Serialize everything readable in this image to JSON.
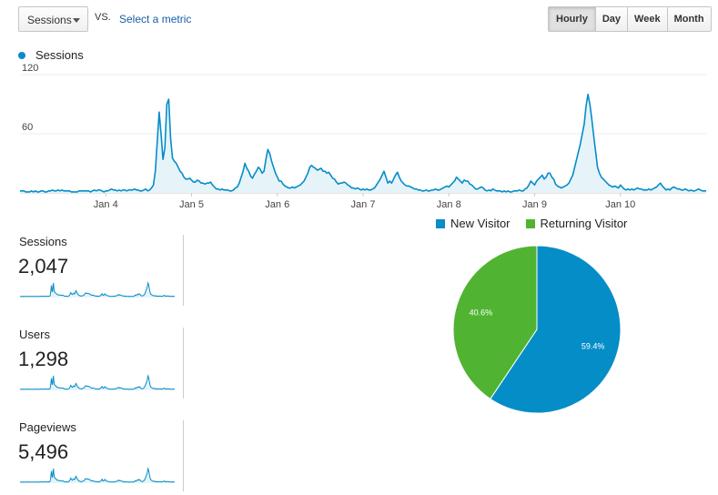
{
  "controls": {
    "metric_select": "Sessions",
    "vs_text": "VS.",
    "select_metric_link": "Select a metric",
    "granularity": [
      {
        "label": "Hourly",
        "active": true
      },
      {
        "label": "Day",
        "active": false
      },
      {
        "label": "Week",
        "active": false
      },
      {
        "label": "Month",
        "active": false
      }
    ]
  },
  "colors": {
    "sessions": "#058dc7",
    "new_visitor": "#058dc7",
    "returning_visitor": "#50b432",
    "area_fill": "#e6f4fa"
  },
  "chart_data": [
    {
      "type": "area",
      "series": [
        {
          "name": "Sessions"
        }
      ],
      "y_ticks": [
        "120",
        "60"
      ],
      "ylim": [
        0,
        120
      ],
      "x_ticks": [
        "Jan 4",
        "Jan 5",
        "Jan 6",
        "Jan 7",
        "Jan 8",
        "Jan 9",
        "Jan 10"
      ],
      "x_tick_dates": [
        "2020-01-04",
        "2020-01-05",
        "2020-01-06",
        "2020-01-07",
        "2020-01-08",
        "2020-01-09",
        "2020-01-10"
      ],
      "x_range": [
        "2020-01-03",
        "2020-01-11"
      ],
      "values": [
        2,
        2,
        2,
        1,
        1,
        1,
        2,
        1,
        2,
        1,
        1,
        2,
        2,
        1,
        1,
        2,
        2,
        3,
        2,
        2,
        3,
        2,
        3,
        2,
        2,
        2,
        2,
        1,
        1,
        1,
        1,
        2,
        2,
        2,
        2,
        2,
        2,
        1,
        2,
        3,
        2,
        3,
        3,
        2,
        1,
        2,
        2,
        3,
        4,
        3,
        3,
        2,
        3,
        2,
        3,
        3,
        2,
        3,
        3,
        3,
        4,
        3,
        3,
        2,
        2,
        3,
        4,
        2,
        3,
        5,
        8,
        22,
        52,
        82,
        60,
        34,
        46,
        90,
        95,
        55,
        35,
        32,
        30,
        26,
        22,
        20,
        16,
        14,
        14,
        15,
        13,
        11,
        11,
        13,
        12,
        10,
        10,
        9,
        10,
        10,
        11,
        8,
        6,
        4,
        4,
        3,
        4,
        3,
        3,
        3,
        2,
        2,
        3,
        5,
        6,
        10,
        16,
        22,
        30,
        25,
        22,
        17,
        15,
        19,
        22,
        26,
        24,
        20,
        22,
        34,
        44,
        40,
        32,
        26,
        20,
        16,
        12,
        12,
        9,
        7,
        6,
        5,
        5,
        6,
        5,
        6,
        7,
        8,
        10,
        12,
        16,
        20,
        26,
        28,
        26,
        25,
        23,
        24,
        25,
        22,
        22,
        20,
        21,
        18,
        15,
        14,
        11,
        9,
        10,
        10,
        11,
        10,
        8,
        7,
        5,
        5,
        4,
        5,
        4,
        3,
        4,
        3,
        4,
        3,
        3,
        4,
        5,
        8,
        11,
        14,
        18,
        22,
        16,
        10,
        12,
        10,
        14,
        18,
        21,
        16,
        12,
        10,
        8,
        7,
        7,
        6,
        5,
        4,
        4,
        3,
        3,
        2,
        2,
        3,
        2,
        2,
        3,
        3,
        4,
        3,
        3,
        4,
        5,
        6,
        7,
        6,
        8,
        10,
        12,
        16,
        14,
        12,
        10,
        13,
        12,
        12,
        9,
        8,
        6,
        4,
        4,
        5,
        6,
        5,
        3,
        2,
        3,
        2,
        4,
        3,
        2,
        2,
        2,
        1,
        2,
        1,
        2,
        1,
        1,
        2,
        2,
        2,
        3,
        2,
        2,
        4,
        5,
        8,
        12,
        10,
        8,
        12,
        14,
        16,
        18,
        14,
        16,
        20,
        20,
        16,
        14,
        9,
        7,
        6,
        5,
        6,
        7,
        8,
        10,
        14,
        18,
        26,
        34,
        42,
        50,
        60,
        70,
        88,
        100,
        90,
        75,
        58,
        42,
        26,
        20,
        16,
        14,
        12,
        10,
        8,
        7,
        6,
        7,
        6,
        5,
        8,
        6,
        4,
        3,
        4,
        3,
        4,
        3,
        4,
        5,
        4,
        4,
        3,
        3,
        3,
        4,
        3,
        4,
        5,
        6,
        8,
        10,
        7,
        5,
        3,
        4,
        3,
        5,
        6,
        5,
        4,
        4,
        3,
        3,
        4,
        3,
        2,
        3,
        2,
        2,
        3,
        4,
        3,
        2,
        2,
        2
      ]
    },
    {
      "type": "pie",
      "series": [
        {
          "name": "New Visitor",
          "value": 59.4,
          "label": "59.4%",
          "color": "#058dc7"
        },
        {
          "name": "Returning Visitor",
          "value": 40.6,
          "label": "40.6%",
          "color": "#50b432"
        }
      ],
      "legend": "top"
    }
  ],
  "metrics": [
    {
      "title": "Sessions",
      "value": "2,047"
    },
    {
      "title": "Users",
      "value": "1,298"
    },
    {
      "title": "Pageviews",
      "value": "5,496"
    }
  ],
  "pie_legend": [
    "New Visitor",
    "Returning Visitor"
  ]
}
